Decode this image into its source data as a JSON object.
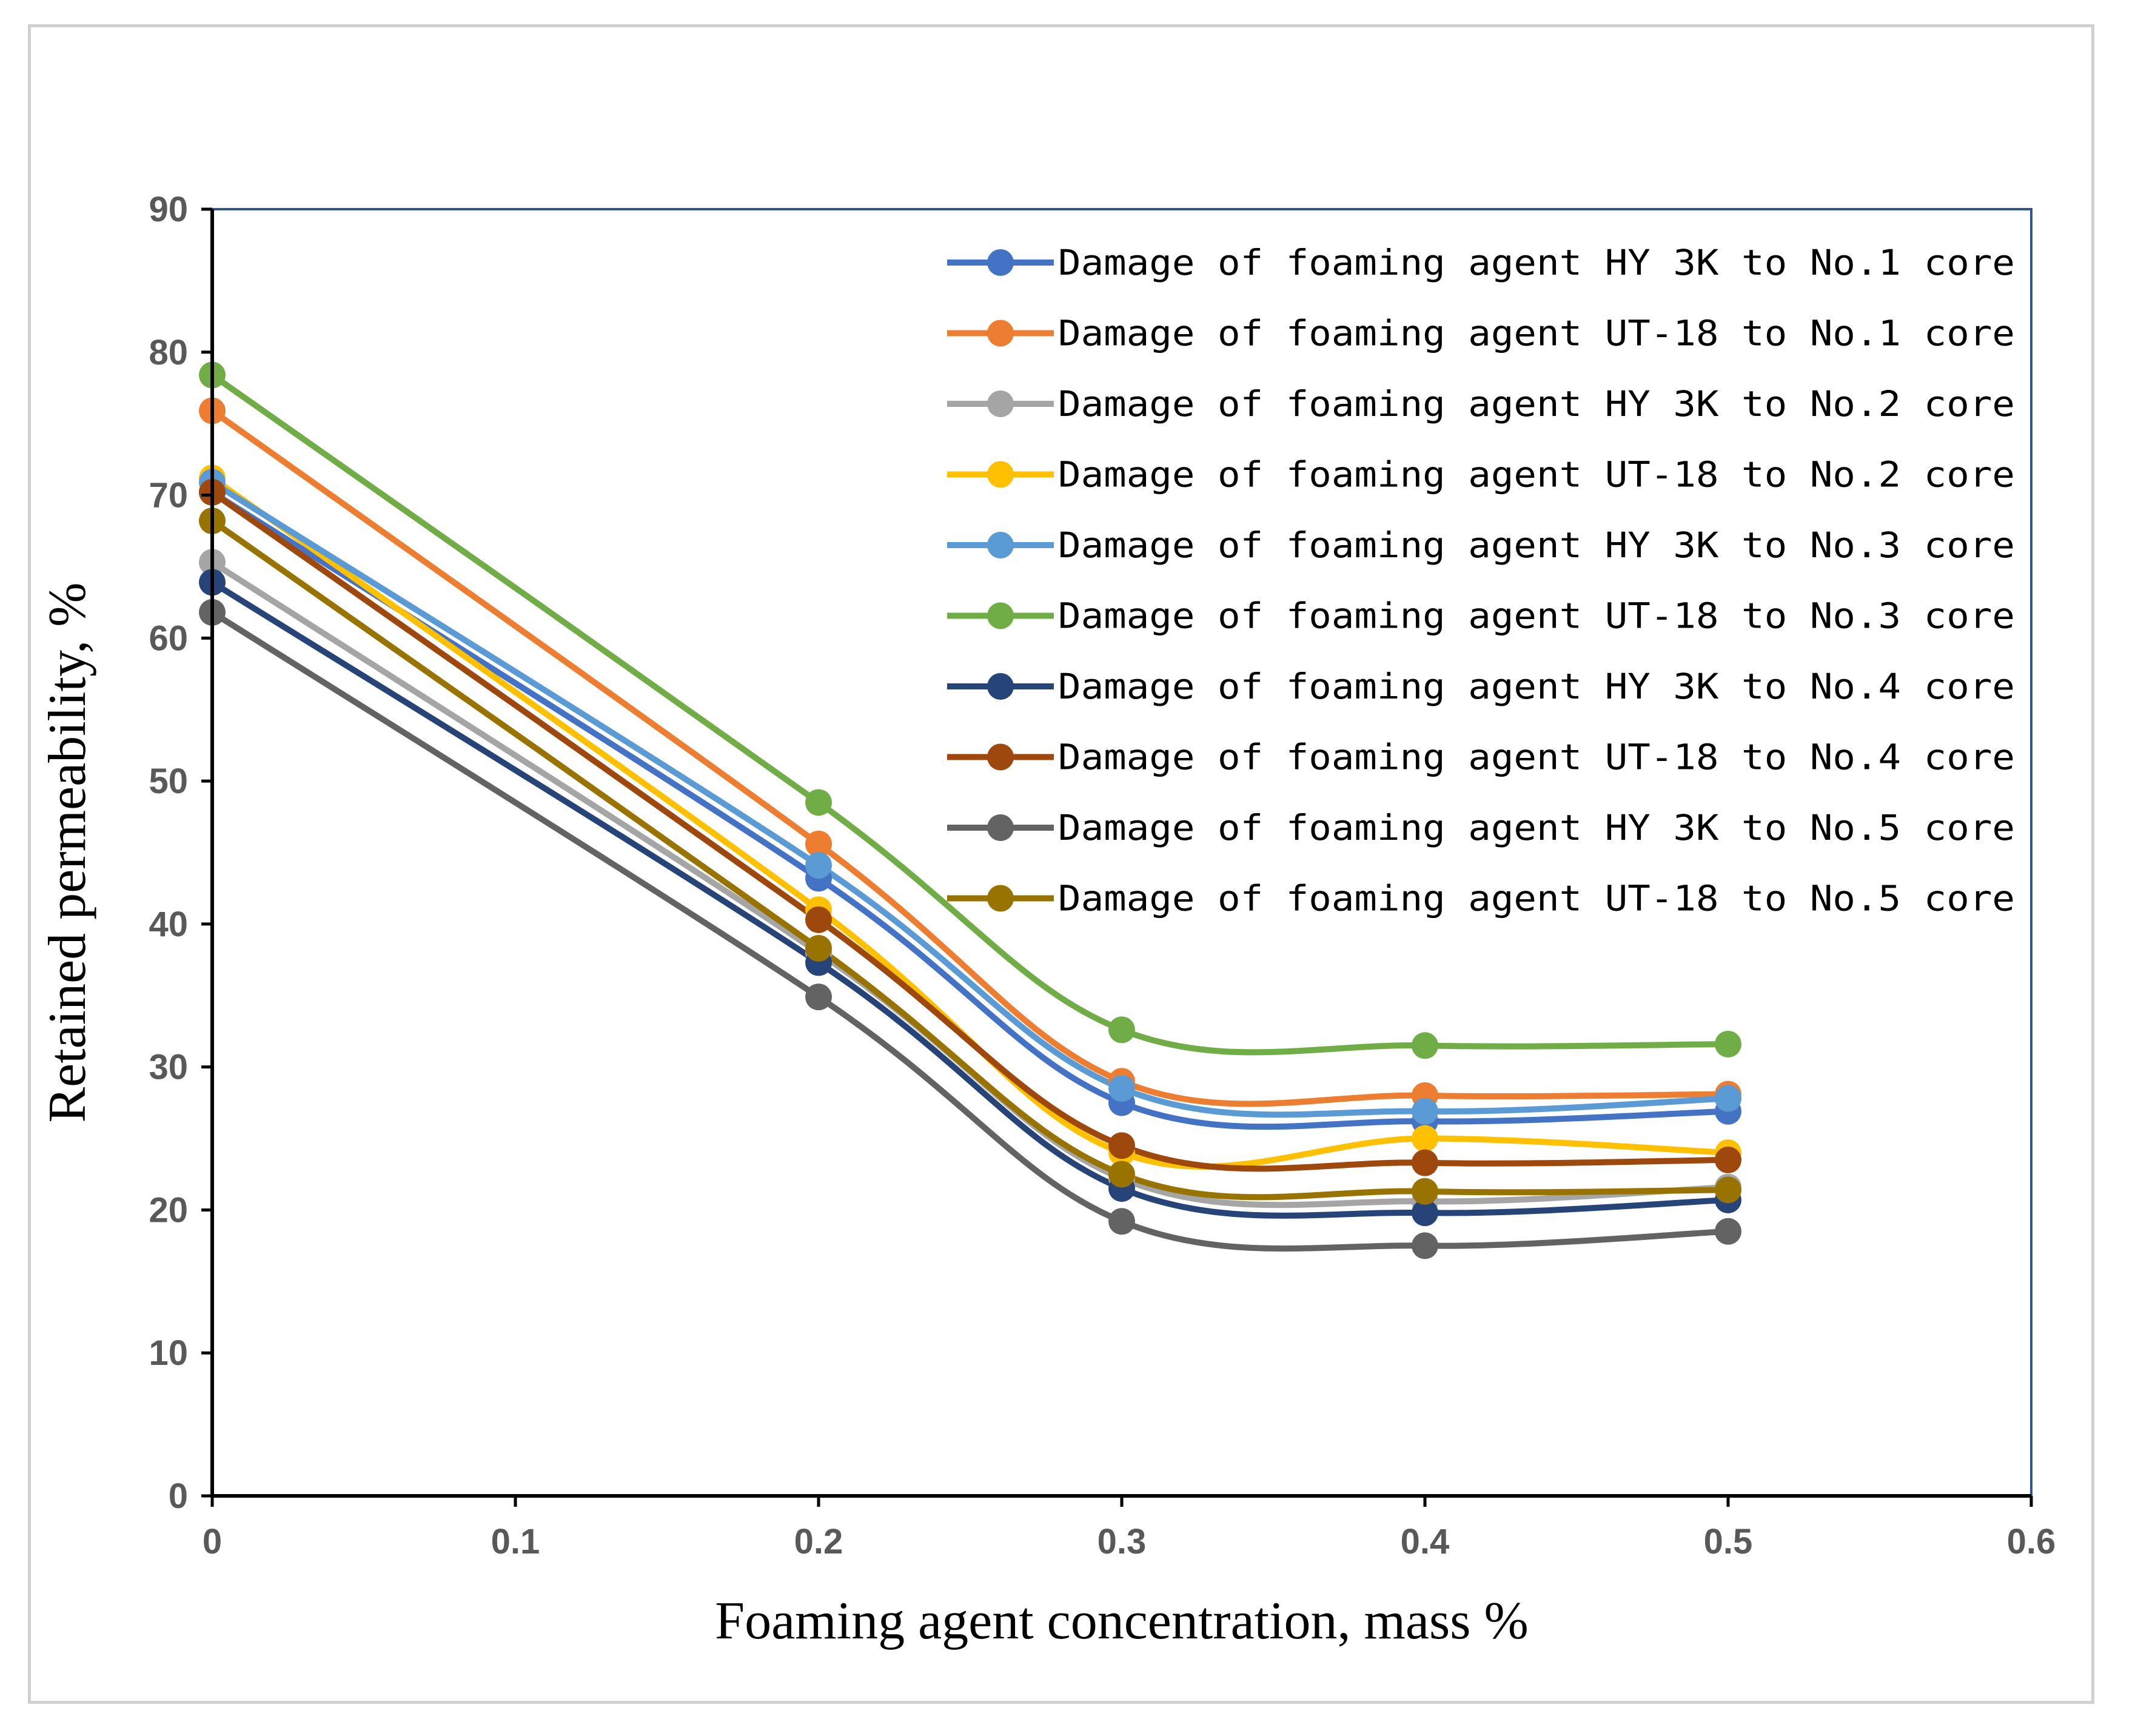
{
  "chart_data": {
    "type": "line",
    "title": "",
    "xlabel": "Foaming agent concentration, mass %",
    "ylabel": "Retained permeability, %",
    "xlim": [
      0,
      0.6
    ],
    "ylim": [
      0,
      90
    ],
    "xticks": [
      "0",
      "0.1",
      "0.2",
      "0.3",
      "0.4",
      "0.5",
      "0.6"
    ],
    "xtick_values": [
      0,
      0.1,
      0.2,
      0.3,
      0.4,
      0.5,
      0.6
    ],
    "yticks": [
      "0",
      "10",
      "20",
      "30",
      "40",
      "50",
      "60",
      "70",
      "80",
      "90"
    ],
    "ytick_values": [
      0,
      10,
      20,
      30,
      40,
      50,
      60,
      70,
      80,
      90
    ],
    "x": [
      0,
      0.2,
      0.3,
      0.4,
      0.5
    ],
    "legend_position": "top-right",
    "series": [
      {
        "name": "Damage of foaming agent HY 3K to No.1 core",
        "color": "#4472C4",
        "values": [
          70.2,
          43.2,
          27.5,
          26.2,
          26.9
        ]
      },
      {
        "name": "Damage of foaming agent UT-18 to No.1 core",
        "color": "#ED7D31",
        "values": [
          75.9,
          45.6,
          29.0,
          28.0,
          28.1
        ]
      },
      {
        "name": "Damage of foaming agent HY 3K to No.2 core",
        "color": "#A5A5A5",
        "values": [
          65.3,
          38.0,
          22.2,
          20.6,
          21.6
        ]
      },
      {
        "name": "Damage of foaming agent UT-18 to No.2 core",
        "color": "#FFC000",
        "values": [
          71.2,
          41.0,
          24.0,
          25.0,
          24.0
        ]
      },
      {
        "name": "Damage of foaming agent HY 3K to No.3 core",
        "color": "#5B9BD5",
        "values": [
          70.9,
          44.1,
          28.5,
          26.9,
          27.8
        ]
      },
      {
        "name": "Damage of foaming agent UT-18 to No.3 core",
        "color": "#70AD47",
        "values": [
          78.4,
          48.5,
          32.6,
          31.5,
          31.6
        ]
      },
      {
        "name": "Damage of foaming agent HY 3K to No.4 core",
        "color": "#264478",
        "values": [
          63.9,
          37.3,
          21.5,
          19.8,
          20.7
        ]
      },
      {
        "name": "Damage of foaming agent UT-18 to No.4 core",
        "color": "#9E480E",
        "values": [
          70.2,
          40.3,
          24.5,
          23.3,
          23.5
        ]
      },
      {
        "name": "Damage of foaming agent HY 3K to No.5 core",
        "color": "#636363",
        "values": [
          61.8,
          34.9,
          19.2,
          17.5,
          18.5
        ]
      },
      {
        "name": "Damage of foaming agent UT-18 to No.5 core",
        "color": "#997300",
        "values": [
          68.2,
          38.3,
          22.5,
          21.3,
          21.4
        ]
      }
    ]
  }
}
